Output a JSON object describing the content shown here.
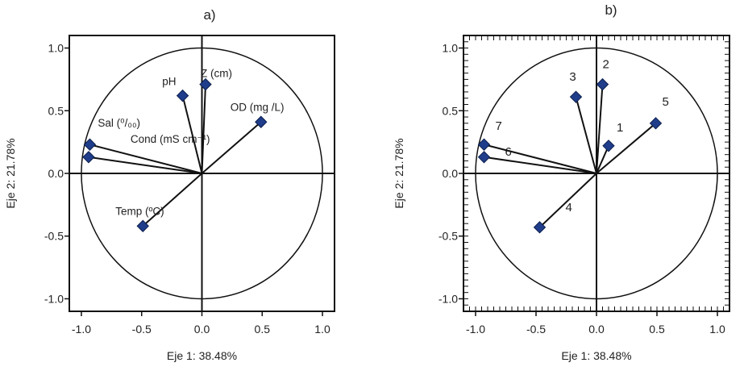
{
  "chart_data": [
    {
      "type": "scatter",
      "panel_label": "a)",
      "xlabel": "Eje 1: 38.48%",
      "ylabel": "Eje 2: 21.78%",
      "xlim": [
        -1.1,
        1.1
      ],
      "ylim": [
        -1.1,
        1.1
      ],
      "xticks": [
        "-1.0",
        "-0.5",
        "0.0",
        "0.5",
        "1.0"
      ],
      "yticks": [
        "-1.0",
        "-0.5",
        "0.0",
        "0.5",
        "1.0"
      ],
      "unit_circle": true,
      "crosshair": true,
      "points": [
        {
          "label": "Sal (⁰/₀₀)",
          "x": -0.93,
          "y": 0.23
        },
        {
          "label": "Cond (mS cm⁻¹)",
          "x": -0.94,
          "y": 0.13
        },
        {
          "label": "pH",
          "x": -0.16,
          "y": 0.62
        },
        {
          "label": "Z (cm)",
          "x": 0.03,
          "y": 0.71
        },
        {
          "label": "OD (mg /L)",
          "x": 0.49,
          "y": 0.41
        },
        {
          "label": "Temp (ºC)",
          "x": -0.49,
          "y": -0.42
        }
      ],
      "marker_color": "#1f3d8a"
    },
    {
      "type": "scatter",
      "panel_label": "b)",
      "xlabel": "Eje 1: 38.48%",
      "ylabel": "Eje 2: 21.78%",
      "xlim": [
        -1.1,
        1.1
      ],
      "ylim": [
        -1.1,
        1.1
      ],
      "xticks": [
        "-1.0",
        "-0.5",
        "0.0",
        "0.5",
        "1.0"
      ],
      "yticks": [
        "-1.0",
        "-0.5",
        "0.0",
        "0.5",
        "1.0"
      ],
      "unit_circle": true,
      "crosshair": true,
      "points": [
        {
          "label": "1",
          "x": 0.1,
          "y": 0.22
        },
        {
          "label": "2",
          "x": 0.05,
          "y": 0.71
        },
        {
          "label": "3",
          "x": -0.17,
          "y": 0.61
        },
        {
          "label": "4",
          "x": -0.47,
          "y": -0.43
        },
        {
          "label": "5",
          "x": 0.49,
          "y": 0.4
        },
        {
          "label": "6",
          "x": -0.93,
          "y": 0.13
        },
        {
          "label": "7",
          "x": -0.93,
          "y": 0.23
        }
      ],
      "marker_color": "#1f3d8a"
    }
  ]
}
